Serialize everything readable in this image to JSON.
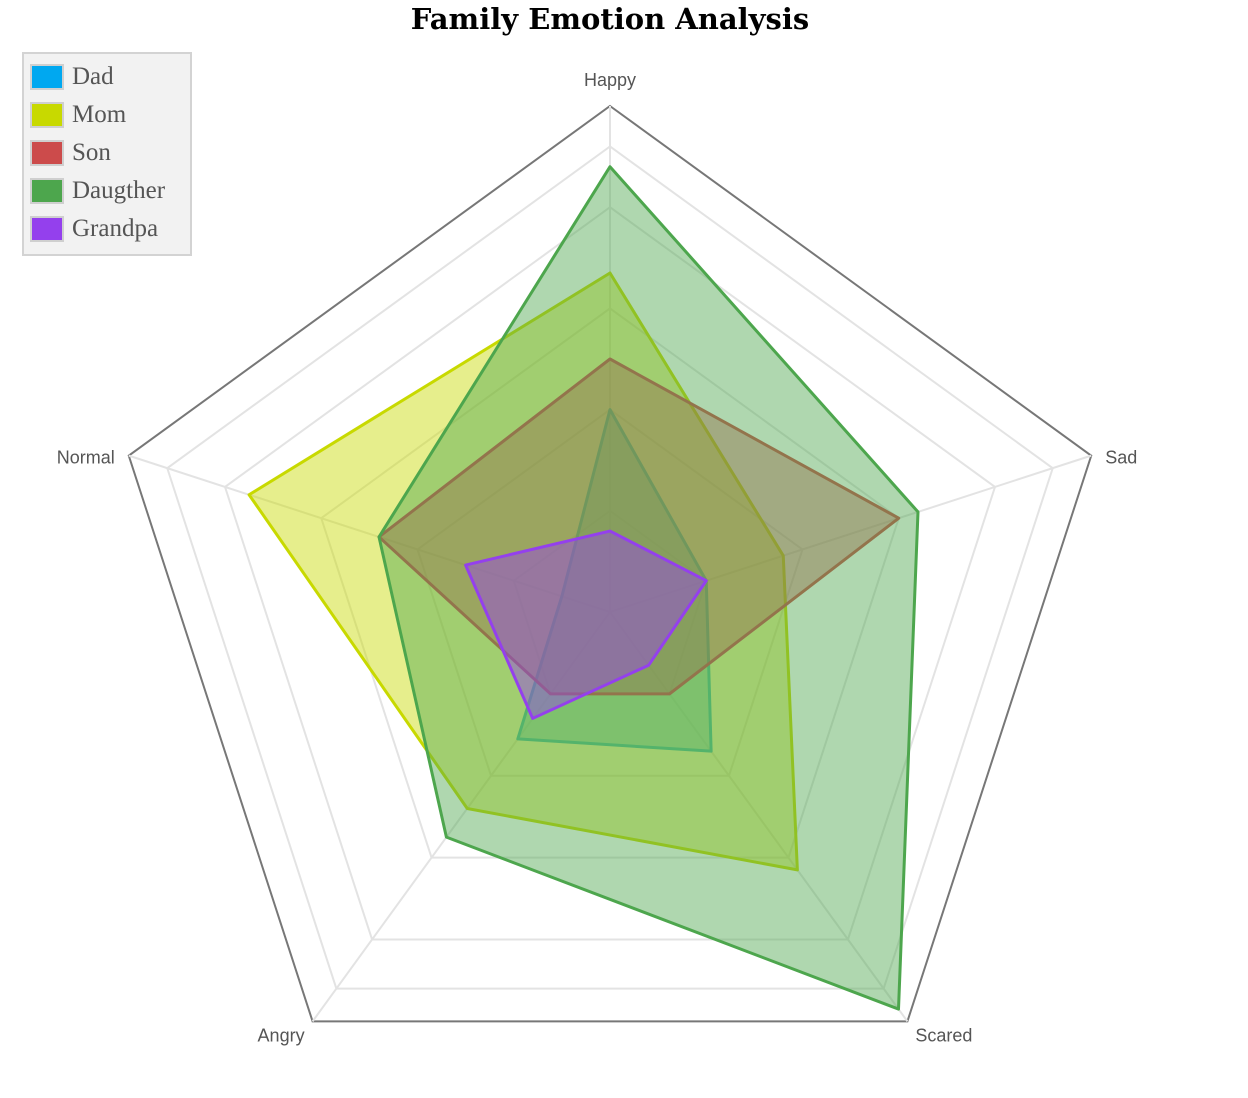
{
  "chart_data": {
    "type": "radar",
    "title": "Family Emotion Analysis",
    "axes": [
      "Happy",
      "Sad",
      "Scared",
      "Angry",
      "Normal"
    ],
    "max": 10,
    "rings": 5,
    "legend_placement": "top-left",
    "series": [
      {
        "name": "Dad",
        "color": "#00a8f0",
        "values": [
          4.0,
          2.0,
          3.4,
          3.1,
          1.0
        ]
      },
      {
        "name": "Mom",
        "color": "#c8d900",
        "values": [
          6.7,
          3.6,
          6.3,
          4.8,
          7.5
        ]
      },
      {
        "name": "Son",
        "color": "#cc4b4b",
        "values": [
          5.0,
          6.0,
          2.0,
          2.0,
          4.8
        ]
      },
      {
        "name": "Daugther",
        "color": "#4da64d",
        "values": [
          8.8,
          6.4,
          9.7,
          5.5,
          4.8
        ]
      },
      {
        "name": "Grandpa",
        "color": "#9440ed",
        "values": [
          1.6,
          2.0,
          1.3,
          2.6,
          3.0
        ]
      }
    ]
  }
}
